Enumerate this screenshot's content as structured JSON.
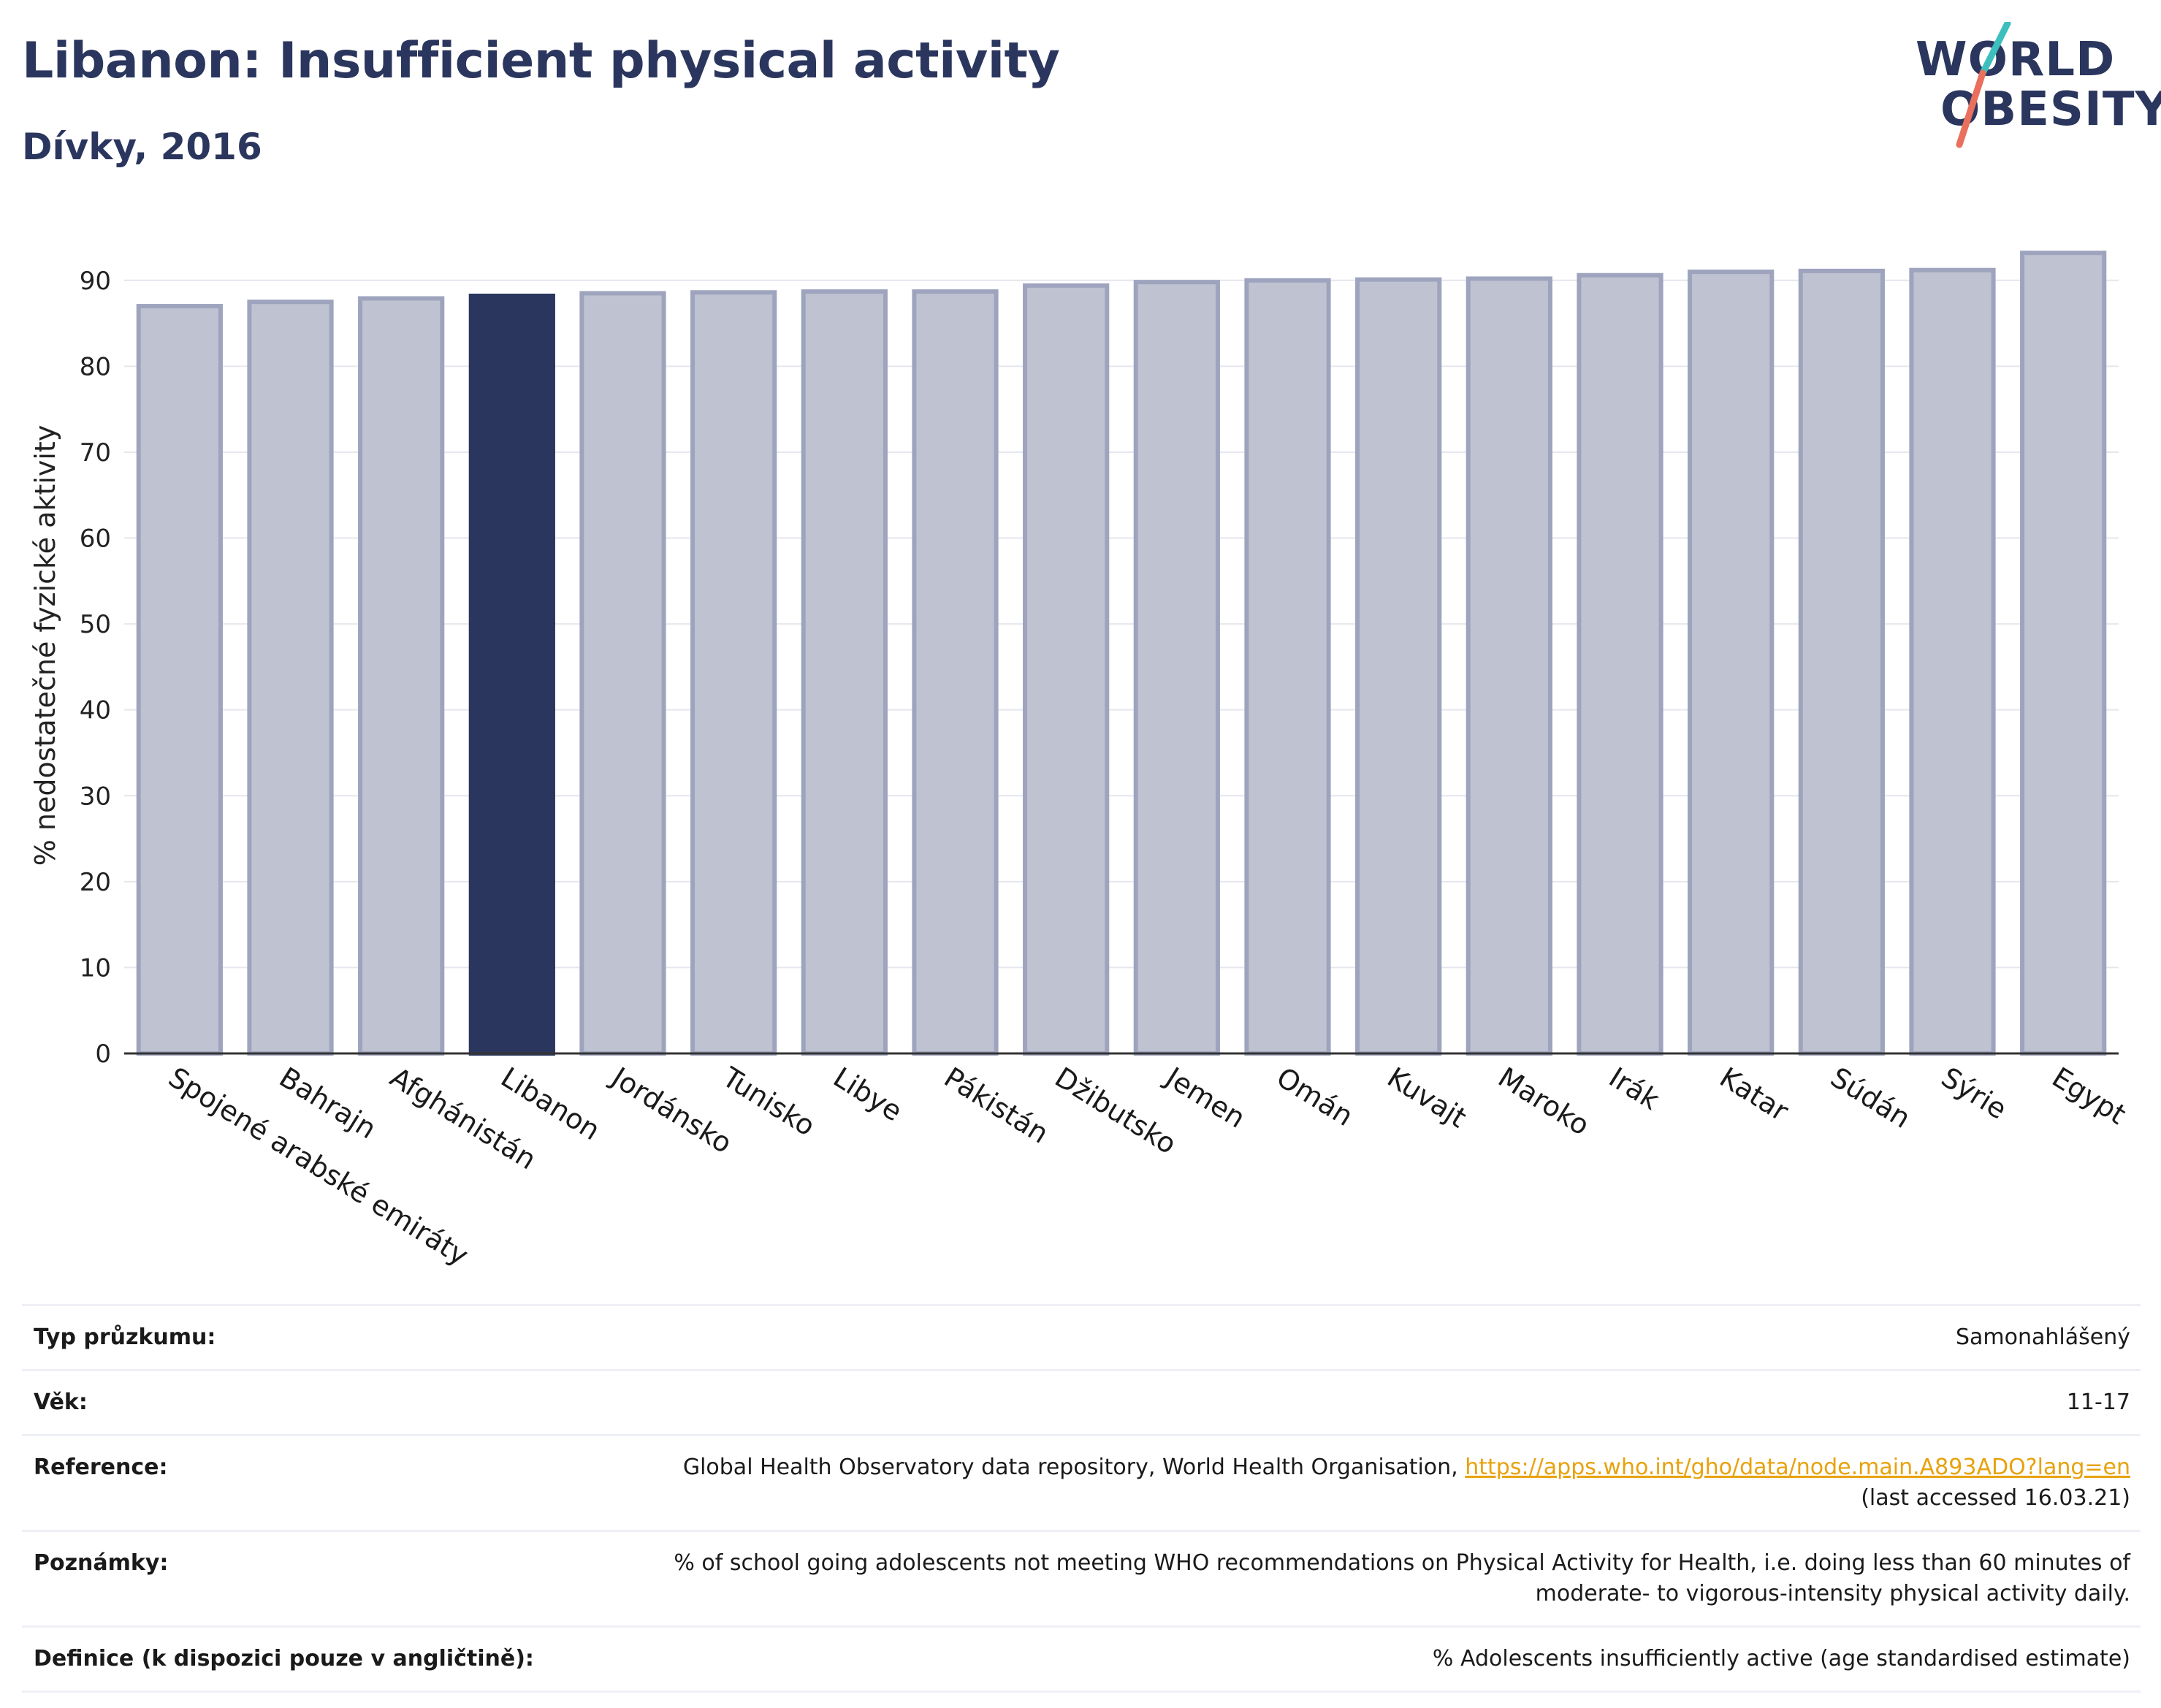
{
  "header": {
    "title": "Libanon: Insufficient physical activity",
    "subtitle": "Dívky, 2016"
  },
  "logo": {
    "line1": "WORLD",
    "line2": "OBESITY",
    "colors": {
      "text": "#2b365e",
      "slash_teal": "#3cbfbd",
      "slash_coral": "#e8705c"
    }
  },
  "colors": {
    "bar": "#bfc2d0",
    "bar_border": "#9ea4bd",
    "highlight": "#2b365e",
    "grid": "#e6e6ee",
    "axis": "#333333"
  },
  "chart_data": {
    "type": "bar",
    "title": "Libanon: Insufficient physical activity",
    "subtitle": "Dívky, 2016",
    "xlabel": "",
    "ylabel": "% nedostatečné fyzické aktivity",
    "ylim": [
      0,
      95
    ],
    "yticks": [
      0,
      10,
      20,
      30,
      40,
      50,
      60,
      70,
      80,
      90
    ],
    "grid": true,
    "highlight": "Libanon",
    "categories": [
      "Spojené arabské emiráty",
      "Bahrajn",
      "Afghánistán",
      "Libanon",
      "Jordánsko",
      "Tunisko",
      "Libye",
      "Pákistán",
      "Džibutsko",
      "Jemen",
      "Omán",
      "Kuvajt",
      "Maroko",
      "Irák",
      "Katar",
      "Súdán",
      "Sýrie",
      "Egypt"
    ],
    "values": [
      87.0,
      87.5,
      87.9,
      88.2,
      88.5,
      88.6,
      88.7,
      88.7,
      89.4,
      89.8,
      90.0,
      90.1,
      90.2,
      90.6,
      91.0,
      91.1,
      91.2,
      93.2
    ]
  },
  "meta": [
    {
      "label": "Typ průzkumu:",
      "value": "Samonahlášený"
    },
    {
      "label": "Věk:",
      "value": "11-17"
    },
    {
      "label": "Reference:",
      "value": "Global Health Observatory data repository, World Health Organisation,",
      "link": "https://apps.who.int/gho/data/node.main.A893ADO?lang=en",
      "value2": "(last accessed 16.03.21)"
    },
    {
      "label": "Poznámky:",
      "value": "% of school going adolescents not meeting WHO recommendations on Physical Activity for Health, i.e. doing less than 60 minutes of",
      "value2": "moderate- to vigorous-intensity physical activity daily."
    },
    {
      "label": "Definice (k dispozici pouze v angličtině):",
      "value": "% Adolescents insufficiently active (age standardised estimate)"
    }
  ]
}
